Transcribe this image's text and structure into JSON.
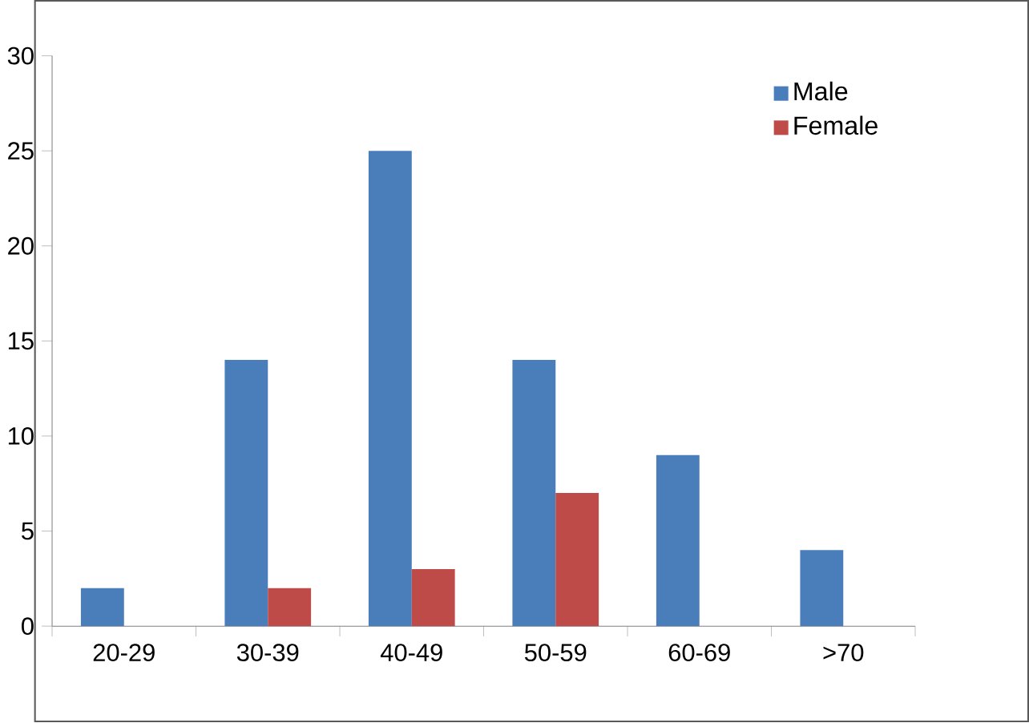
{
  "chart_data": {
    "type": "bar",
    "categories": [
      "20-29",
      "30-39",
      "40-49",
      "50-59",
      "60-69",
      ">70"
    ],
    "series": [
      {
        "name": "Male",
        "color": "#4a7ebb",
        "values": [
          2,
          14,
          25,
          14,
          9,
          4
        ]
      },
      {
        "name": "Female",
        "color": "#be4b48",
        "values": [
          0,
          2,
          3,
          7,
          0,
          0
        ]
      }
    ],
    "ylim": [
      0,
      30
    ],
    "yticks": [
      0,
      5,
      10,
      15,
      20,
      25,
      30
    ],
    "grid": false,
    "legend": "top right"
  }
}
